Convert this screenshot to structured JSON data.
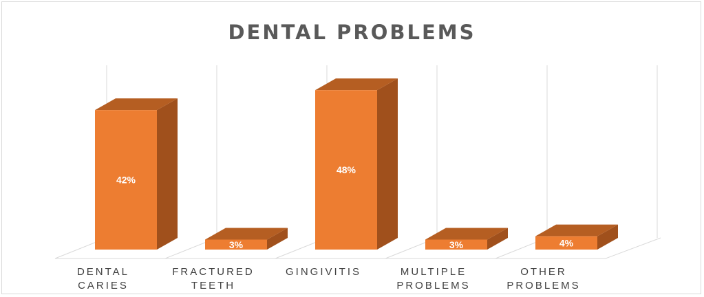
{
  "chart_data": {
    "type": "bar",
    "title": "DENTAL PROBLEMS",
    "categories": [
      [
        "DENTAL",
        "CARIES"
      ],
      [
        "FRACTURED",
        "TEETH"
      ],
      [
        "GINGIVITIS"
      ],
      [
        "MULTIPLE",
        "PROBLEMS"
      ],
      [
        "OTHER",
        "PROBLEMS"
      ]
    ],
    "values": [
      42,
      3,
      48,
      3,
      4
    ],
    "data_labels": [
      "42%",
      "3%",
      "48%",
      "3%",
      "4%"
    ],
    "unit": "%",
    "ylim": [
      0,
      55
    ],
    "grid": true,
    "legend": "none",
    "three_d": true,
    "colors": {
      "bar_front": "#ED7D31",
      "bar_side": "#A0501C",
      "bar_top": "#B55E22",
      "grid": "#d9d9d9",
      "label_text": "#ffffff",
      "axis_text": "#404040",
      "title_text": "#595959"
    }
  }
}
